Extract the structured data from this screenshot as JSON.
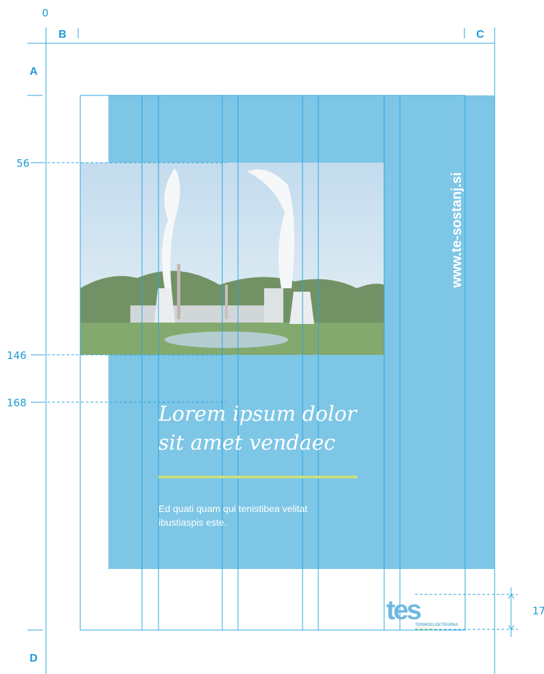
{
  "origin": "0",
  "columns": {
    "left": "B",
    "right": "C"
  },
  "rows": {
    "top": "A",
    "bottom": "D"
  },
  "guides": [
    "56",
    "146",
    "168"
  ],
  "logo_height": "17",
  "brochure": {
    "url": "www.te-sostanj.si",
    "title": [
      "Lorem ipsum dolor",
      "sit amet vendaec"
    ],
    "body": [
      "Ed quati quam qui tenistibea velitat",
      "ibustiaspis este."
    ],
    "logo": {
      "mark": "tes",
      "name": "TERMOELEKTRARNA",
      "place": "ŠOŠTANJ"
    }
  }
}
